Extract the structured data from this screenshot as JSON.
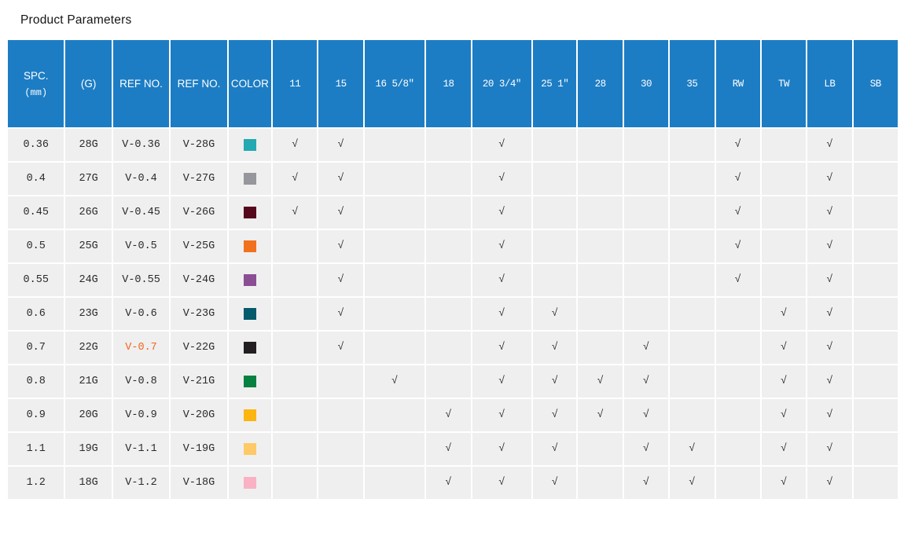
{
  "page": {
    "title": "Product Parameters"
  },
  "colors": {
    "header_bg": "#1d7dc4",
    "row_bg": "#efefef",
    "check_color": "#333333",
    "highlight_color": "#f2661e",
    "header_text": "#ffffff"
  },
  "table": {
    "check_glyph": "√",
    "label_columns": [
      {
        "id": "spc",
        "label": "SPC.",
        "sub": "(mm)"
      },
      {
        "id": "gauge",
        "label": "(G)"
      },
      {
        "id": "ref-mm",
        "label": "REF NO."
      },
      {
        "id": "ref-g",
        "label": "REF NO."
      },
      {
        "id": "color",
        "label": "COLOR"
      }
    ],
    "size_columns": [
      "11",
      "15",
      "16 5/8″",
      "18",
      "20 3/4″",
      "25 1″",
      "28",
      "30",
      "35",
      "RW",
      "TW",
      "LB",
      "SB"
    ],
    "rows": [
      {
        "spc": "0.36",
        "g": "28G",
        "ref_mm": "V-0.36",
        "ref_g": "V-28G",
        "swatch": "#22a9b2",
        "checks": [
          "11",
          "15",
          "20 3/4″",
          "RW",
          "LB"
        ]
      },
      {
        "spc": "0.4",
        "g": "27G",
        "ref_mm": "V-0.4",
        "ref_g": "V-27G",
        "swatch": "#95979d",
        "checks": [
          "11",
          "15",
          "20 3/4″",
          "RW",
          "LB"
        ]
      },
      {
        "spc": "0.45",
        "g": "26G",
        "ref_mm": "V-0.45",
        "ref_g": "V-26G",
        "swatch": "#56081c",
        "checks": [
          "11",
          "15",
          "20 3/4″",
          "RW",
          "LB"
        ]
      },
      {
        "spc": "0.5",
        "g": "25G",
        "ref_mm": "V-0.5",
        "ref_g": "V-25G",
        "swatch": "#f2711f",
        "checks": [
          "15",
          "20 3/4″",
          "RW",
          "LB"
        ]
      },
      {
        "spc": "0.55",
        "g": "24G",
        "ref_mm": "V-0.55",
        "ref_g": "V-24G",
        "swatch": "#8b4e94",
        "checks": [
          "15",
          "20 3/4″",
          "RW",
          "LB"
        ]
      },
      {
        "spc": "0.6",
        "g": "23G",
        "ref_mm": "V-0.6",
        "ref_g": "V-23G",
        "swatch": "#055a6c",
        "checks": [
          "15",
          "20 3/4″",
          "25 1″",
          "TW",
          "LB"
        ]
      },
      {
        "spc": "0.7",
        "g": "22G",
        "ref_mm": "V-0.7",
        "ref_g": "V-22G",
        "swatch": "#231e21",
        "ref_mm_highlight": true,
        "checks": [
          "15",
          "20 3/4″",
          "25 1″",
          "30",
          "TW",
          "LB"
        ]
      },
      {
        "spc": "0.8",
        "g": "21G",
        "ref_mm": "V-0.8",
        "ref_g": "V-21G",
        "swatch": "#07813f",
        "checks": [
          "16 5/8″",
          "20 3/4″",
          "25 1″",
          "28",
          "30",
          "TW",
          "LB"
        ]
      },
      {
        "spc": "0.9",
        "g": "20G",
        "ref_mm": "V-0.9",
        "ref_g": "V-20G",
        "swatch": "#fcb511",
        "checks": [
          "18",
          "20 3/4″",
          "25 1″",
          "28",
          "30",
          "TW",
          "LB"
        ]
      },
      {
        "spc": "1.1",
        "g": "19G",
        "ref_mm": "V-1.1",
        "ref_g": "V-19G",
        "swatch": "#fec966",
        "checks": [
          "18",
          "20 3/4″",
          "25 1″",
          "30",
          "35",
          "TW",
          "LB"
        ]
      },
      {
        "spc": "1.2",
        "g": "18G",
        "ref_mm": "V-1.2",
        "ref_g": "V-18G",
        "swatch": "#fab1c4",
        "checks": [
          "18",
          "20 3/4″",
          "25 1″",
          "30",
          "35",
          "TW",
          "LB"
        ]
      }
    ]
  }
}
